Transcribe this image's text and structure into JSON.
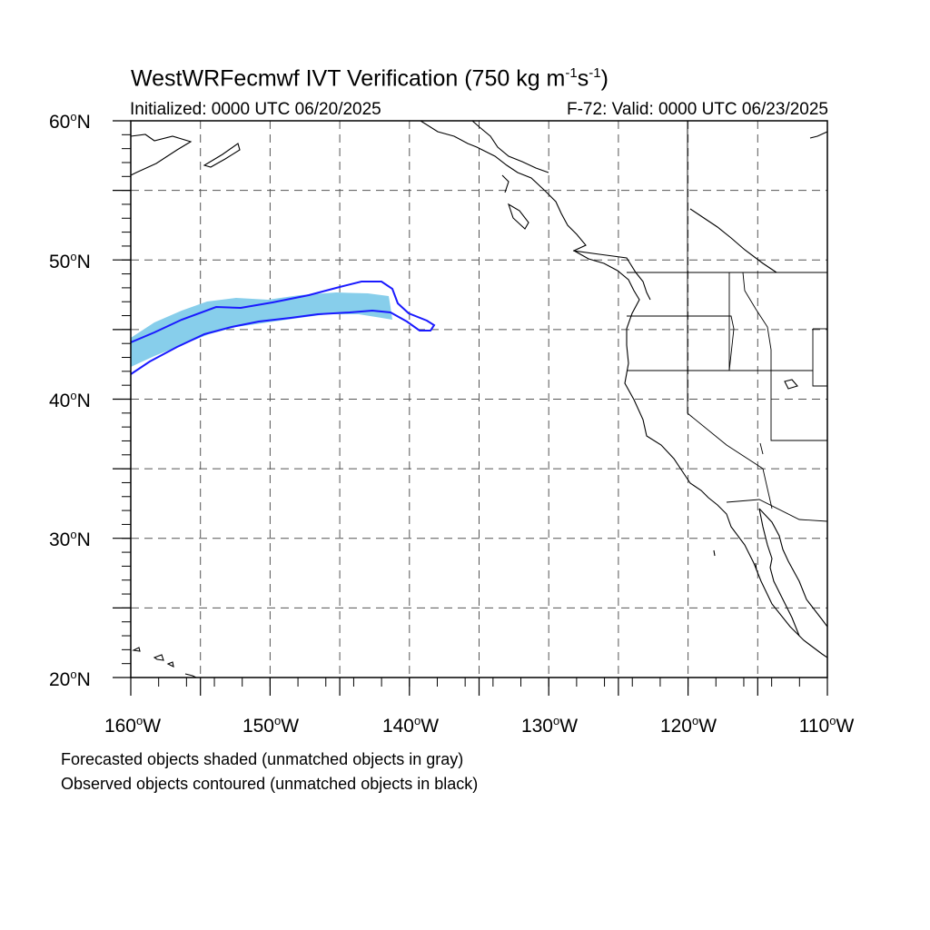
{
  "title": {
    "main": "WestWRFecmwf IVT Verification (750 kg m",
    "exp1": "-1",
    "mid": "s",
    "exp2": "-1",
    "end": ")"
  },
  "subtitle_left": "Initialized: 0000 UTC 06/20/2025",
  "subtitle_right": "F-72: Valid: 0000 UTC 06/23/2025",
  "lat_labels": [
    {
      "value": "60",
      "deg": "o",
      "hemi": "N"
    },
    {
      "value": "50",
      "deg": "o",
      "hemi": "N"
    },
    {
      "value": "40",
      "deg": "o",
      "hemi": "N"
    },
    {
      "value": "30",
      "deg": "o",
      "hemi": "N"
    },
    {
      "value": "20",
      "deg": "o",
      "hemi": "N"
    }
  ],
  "lon_labels": [
    {
      "value": "160",
      "deg": "o",
      "hemi": "W"
    },
    {
      "value": "150",
      "deg": "o",
      "hemi": "W"
    },
    {
      "value": "140",
      "deg": "o",
      "hemi": "W"
    },
    {
      "value": "130",
      "deg": "o",
      "hemi": "W"
    },
    {
      "value": "120",
      "deg": "o",
      "hemi": "W"
    },
    {
      "value": "110",
      "deg": "o",
      "hemi": "W"
    }
  ],
  "map_extent": {
    "lon_min": -160,
    "lon_max": -110,
    "lat_min": 20,
    "lat_max": 60
  },
  "colors": {
    "forecast_shade": "#87ceeb",
    "observed_contour": "#1a1aff",
    "coastline": "#000000",
    "grid": "#555555"
  },
  "footnote_line1": "Forecasted objects shaded (unmatched objects in gray)",
  "footnote_line2": "Observed objects contoured (unmatched objects in black)"
}
